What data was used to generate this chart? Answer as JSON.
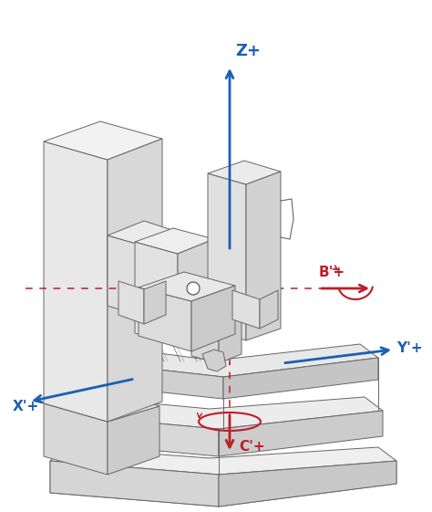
{
  "bg_color": "#ffffff",
  "blue_color": "#1a5fb4",
  "red_color": "#c01c28",
  "edge_color": "#666666",
  "face_light": "#f0f0f0",
  "face_mid": "#e0e0e0",
  "face_dark": "#c8c8c8",
  "face_side": "#d8d8d8",
  "axes_labels": {
    "Z": "Z+",
    "X": "X'+",
    "Y": "Y'+",
    "B": "B'+",
    "C": "C'+"
  },
  "figsize": [
    4.74,
    5.61
  ],
  "dpi": 100
}
